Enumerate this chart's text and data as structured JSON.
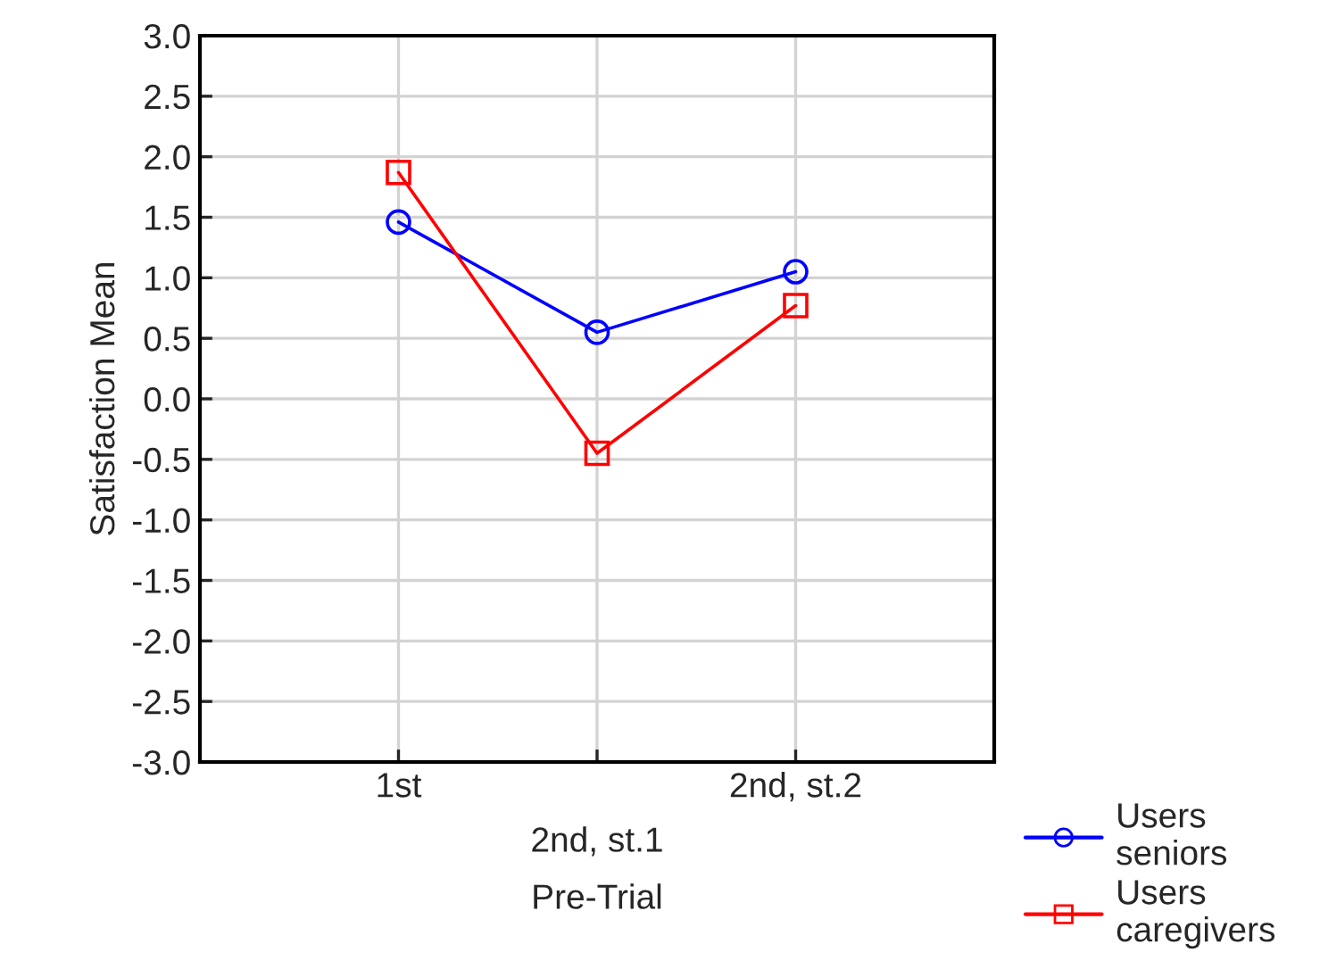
{
  "chart_data": {
    "type": "line",
    "xlabel": "Pre-Trial",
    "ylabel": "Satisfaction Mean",
    "categories": [
      "1st",
      "2nd, st.1",
      "2nd, st.2"
    ],
    "series": [
      {
        "name": "Users\nseniors",
        "color": "#0000ff",
        "marker": "circle",
        "values": [
          1.46,
          0.55,
          1.05
        ]
      },
      {
        "name": "Users\ncaregivers",
        "color": "#ff0000",
        "marker": "square",
        "values": [
          1.87,
          -0.45,
          0.77
        ]
      }
    ],
    "ylim": [
      -3,
      3
    ],
    "yticks": [
      {
        "value": -3,
        "label": "-3.0"
      },
      {
        "value": -2.5,
        "label": "-2.5"
      },
      {
        "value": -2,
        "label": "-2.0"
      },
      {
        "value": -1.5,
        "label": "-1.5"
      },
      {
        "value": -1,
        "label": "-1.0"
      },
      {
        "value": -0.5,
        "label": "-0.5"
      },
      {
        "value": 0,
        "label": "0.0"
      },
      {
        "value": 0.5,
        "label": "0.5"
      },
      {
        "value": 1,
        "label": "1.0"
      },
      {
        "value": 1.5,
        "label": "1.5"
      },
      {
        "value": 2,
        "label": "2.0"
      },
      {
        "value": 2.5,
        "label": "2.5"
      },
      {
        "value": 3,
        "label": "3.0"
      }
    ],
    "grid": true,
    "legend": "bottom right",
    "line_style": "solid"
  }
}
